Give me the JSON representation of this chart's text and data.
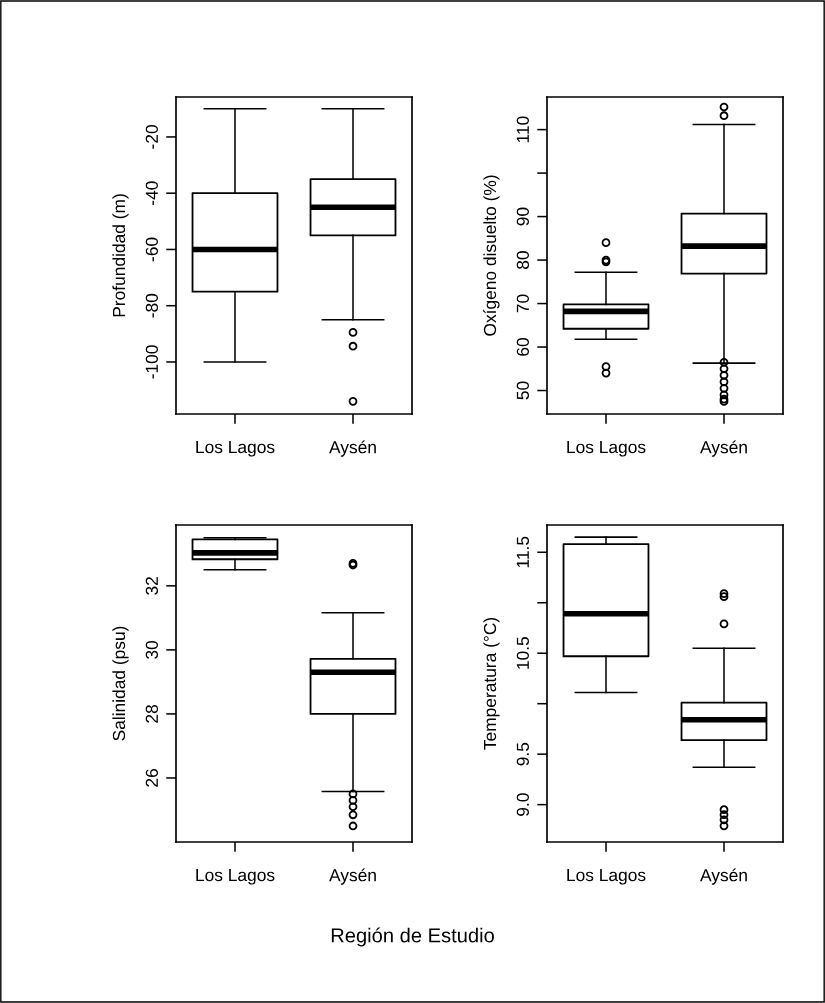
{
  "chart_data": [
    {
      "type": "box",
      "categories": [
        "Los Lagos",
        "Aysén"
      ],
      "ylabel": "Profundidad (m)",
      "ylim": [
        -118.5,
        -5.8
      ],
      "yticks": [
        -20,
        -40,
        -60,
        -80,
        -100
      ],
      "grid": false,
      "boxes": [
        {
          "low": -100,
          "q1": -75,
          "median": -60,
          "q3": -40,
          "high": -10
        },
        {
          "low": -85,
          "q1": -55,
          "median": -45,
          "q3": -35,
          "high": -10,
          "outliers": [
            -89.5,
            -94.4,
            -114
          ]
        }
      ]
    },
    {
      "type": "box",
      "categories": [
        "Los Lagos",
        "Aysén"
      ],
      "ylabel": "Oxígeno disuelto (%)",
      "ylim": [
        44.6,
        117.5
      ],
      "yticks": [
        50,
        60,
        70,
        80,
        90,
        {
          "value": 100,
          "label": null
        },
        110
      ],
      "grid": false,
      "boxes": [
        {
          "low": 61.8,
          "q1": 64.2,
          "median": 68.2,
          "q3": 69.8,
          "high": 77.2,
          "outliers": [
            84.0,
            80.0,
            79.6,
            55.5,
            54.0
          ]
        },
        {
          "low": 56.3,
          "q1": 76.9,
          "median": 83.2,
          "q3": 90.7,
          "high": 111.2,
          "outliers": [
            115.2,
            113.2,
            56.5,
            55.0,
            53.5,
            52.0,
            50.5,
            49.0,
            48.0,
            47.5
          ]
        }
      ]
    },
    {
      "type": "box",
      "categories": [
        "Los Lagos",
        "Aysén"
      ],
      "ylabel": "Salinidad (psu)",
      "ylim": [
        24.0,
        33.9
      ],
      "yticks": [
        26,
        28,
        30,
        32
      ],
      "grid": false,
      "annotations": [
        "Región de Estudio"
      ],
      "boxes": [
        {
          "low": 32.5,
          "q1": 32.83,
          "median": 33.03,
          "q3": 33.45,
          "high": 33.5
        },
        {
          "low": 25.58,
          "q1": 28.0,
          "median": 29.3,
          "q3": 29.72,
          "high": 31.16,
          "outliers": [
            32.7,
            32.65,
            25.5,
            25.3,
            25.1,
            24.85,
            24.5
          ]
        }
      ]
    },
    {
      "type": "box",
      "categories": [
        "Los Lagos",
        "Aysén"
      ],
      "ylabel": "Temperatura (°C)",
      "ylim": [
        8.63,
        11.77
      ],
      "yticks": [
        {
          "value": 9.0,
          "label": "9.0"
        },
        9.5,
        {
          "value": 10.0,
          "label": null
        },
        10.5,
        {
          "value": 11.0,
          "label": null
        },
        11.5
      ],
      "grid": false,
      "boxes": [
        {
          "low": 10.11,
          "q1": 10.47,
          "median": 10.89,
          "q3": 11.58,
          "high": 11.65
        },
        {
          "low": 9.37,
          "q1": 9.64,
          "median": 9.84,
          "q3": 10.01,
          "high": 10.55,
          "outliers": [
            11.09,
            11.06,
            10.79,
            8.95,
            8.9,
            8.85,
            8.79
          ]
        }
      ]
    }
  ]
}
